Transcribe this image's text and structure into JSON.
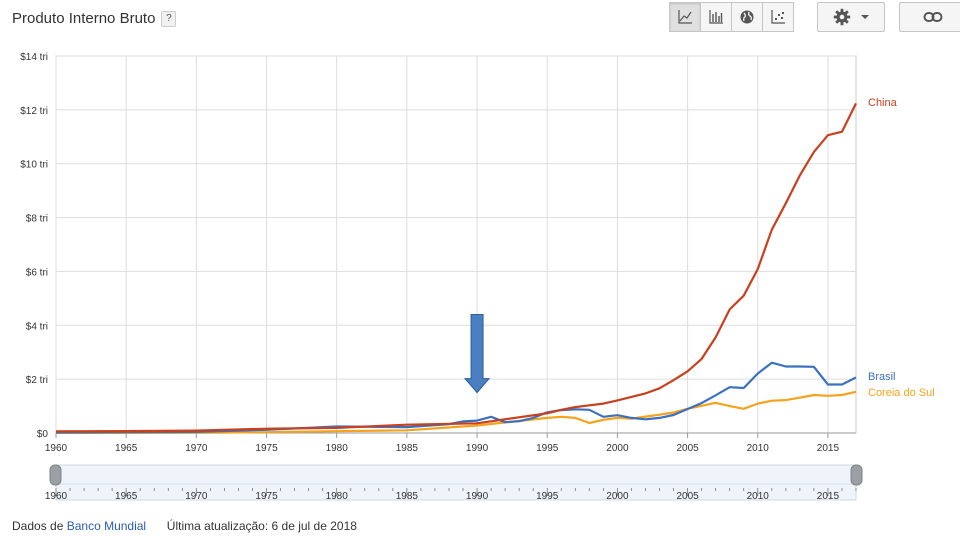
{
  "header": {
    "title": "Produto Interno Bruto",
    "help_label": "?"
  },
  "toolbar": {
    "chart_types": [
      {
        "name": "line-chart-icon",
        "active": true
      },
      {
        "name": "bar-chart-icon",
        "active": false
      },
      {
        "name": "globe-icon",
        "active": false
      },
      {
        "name": "scatter-chart-icon",
        "active": false
      }
    ],
    "settings_icon": "gear-icon",
    "link_icon": "link-icon"
  },
  "footer": {
    "source_prefix": "Dados de",
    "source_name": "Banco Mundial",
    "updated_text": "Última atualização: 6 de jul de 2018"
  },
  "colors": {
    "China": "#c8401d",
    "Brasil": "#3a70c0",
    "Coreia do Sul": "#f5a21c",
    "arrow": "#4a80c2"
  },
  "chart_data": {
    "type": "line",
    "title": "",
    "xlabel": "",
    "ylabel": "",
    "xlim": [
      1960,
      2017
    ],
    "ylim": [
      0,
      14
    ],
    "grid": true,
    "legend": "right, at line ends",
    "x_ticks": [
      1960,
      1965,
      1970,
      1975,
      1980,
      1985,
      1990,
      1995,
      2000,
      2005,
      2010,
      2015
    ],
    "x_tick_labels": [
      "1960",
      "1965",
      "1970",
      "1975",
      "1980",
      "1985",
      "1990",
      "1995",
      "2000",
      "2005",
      "2010",
      "2015"
    ],
    "y_ticks": [
      0,
      2,
      4,
      6,
      8,
      10,
      12,
      14
    ],
    "y_tick_labels": [
      "$0",
      "$2 tri",
      "$4 tri",
      "$6 tri",
      "$8 tri",
      "$10 tri",
      "$12 tri",
      "$14 tri"
    ],
    "annotation": {
      "type": "arrow-down",
      "x": 1990,
      "y_top": 4.4,
      "y_bottom": 1.5
    },
    "series": [
      {
        "name": "China",
        "x": [
          1960,
          1965,
          1970,
          1975,
          1980,
          1985,
          1990,
          1995,
          1996,
          1997,
          1998,
          1999,
          2000,
          2001,
          2002,
          2003,
          2004,
          2005,
          2006,
          2007,
          2008,
          2009,
          2010,
          2011,
          2012,
          2013,
          2014,
          2015,
          2016,
          2017
        ],
        "values": [
          0.06,
          0.07,
          0.09,
          0.16,
          0.19,
          0.31,
          0.36,
          0.73,
          0.86,
          0.96,
          1.03,
          1.09,
          1.21,
          1.34,
          1.47,
          1.66,
          1.96,
          2.29,
          2.75,
          3.55,
          4.59,
          5.1,
          6.09,
          7.55,
          8.53,
          9.57,
          10.44,
          11.06,
          11.19,
          12.24
        ]
      },
      {
        "name": "Brasil",
        "x": [
          1960,
          1965,
          1970,
          1975,
          1980,
          1985,
          1988,
          1989,
          1990,
          1991,
          1992,
          1993,
          1994,
          1995,
          1996,
          1997,
          1998,
          1999,
          2000,
          2001,
          2002,
          2003,
          2004,
          2005,
          2006,
          2007,
          2008,
          2009,
          2010,
          2011,
          2012,
          2013,
          2014,
          2015,
          2016,
          2017
        ],
        "values": [
          0.02,
          0.03,
          0.04,
          0.12,
          0.24,
          0.22,
          0.33,
          0.43,
          0.46,
          0.6,
          0.4,
          0.44,
          0.56,
          0.77,
          0.85,
          0.88,
          0.86,
          0.6,
          0.66,
          0.56,
          0.51,
          0.56,
          0.67,
          0.89,
          1.11,
          1.4,
          1.7,
          1.67,
          2.21,
          2.61,
          2.47,
          2.47,
          2.46,
          1.8,
          1.8,
          2.06
        ]
      },
      {
        "name": "Coreia do Sul",
        "x": [
          1960,
          1965,
          1970,
          1975,
          1980,
          1985,
          1990,
          1995,
          1996,
          1997,
          1998,
          1999,
          2000,
          2001,
          2002,
          2003,
          2004,
          2005,
          2006,
          2007,
          2008,
          2009,
          2010,
          2011,
          2012,
          2013,
          2014,
          2015,
          2016,
          2017
        ],
        "values": [
          0.004,
          0.003,
          0.009,
          0.03,
          0.065,
          0.1,
          0.28,
          0.56,
          0.6,
          0.56,
          0.37,
          0.49,
          0.56,
          0.53,
          0.61,
          0.68,
          0.76,
          0.9,
          1.01,
          1.12,
          1.0,
          0.9,
          1.09,
          1.2,
          1.22,
          1.31,
          1.41,
          1.38,
          1.41,
          1.53
        ]
      }
    ]
  },
  "range_slider": {
    "range": [
      1960,
      2017
    ],
    "tick_labels": [
      "1960",
      "1965",
      "1970",
      "1975",
      "1980",
      "1985",
      "1990",
      "1995",
      "2000",
      "2005",
      "2010",
      "2015"
    ]
  }
}
